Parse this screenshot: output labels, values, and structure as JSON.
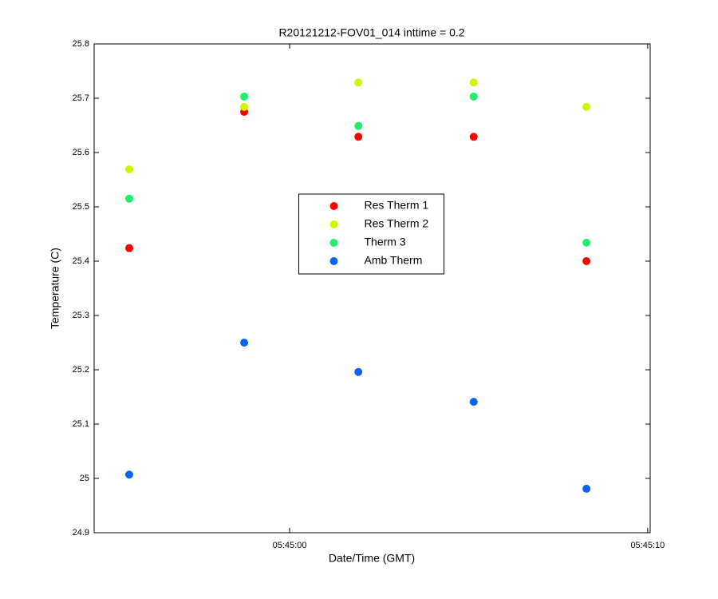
{
  "chart_data": {
    "type": "scatter",
    "title": "R20121212-FOV01_014 inttime = 0.2",
    "x_label": "Date/Time (GMT)",
    "y_label": "Temperature (C)",
    "x": [
      20695.52,
      20698.73,
      20701.92,
      20705.14,
      20708.29
    ],
    "series": [
      {
        "name": "Res Therm 1",
        "color": "#ff0000",
        "values": [
          25.424,
          25.675,
          25.629,
          25.629,
          25.4
        ]
      },
      {
        "name": "Res Therm 2",
        "color": "#d2f500",
        "values": [
          25.569,
          25.684,
          25.729,
          25.729,
          25.684
        ]
      },
      {
        "name": "Therm 3",
        "color": "#1ef06a",
        "values": [
          25.515,
          25.703,
          25.649,
          25.703,
          25.434
        ]
      },
      {
        "name": "Amb Therm",
        "color": "#0a64f0",
        "values": [
          25.007,
          25.25,
          25.196,
          25.141,
          24.981
        ]
      }
    ],
    "xlim": [
      20694.54,
      20710.07
    ],
    "xticks": [
      {
        "value": 20700,
        "label": "05:45:00"
      },
      {
        "value": 20710,
        "label": "05:45:10"
      }
    ],
    "ylim": [
      24.9,
      25.8
    ],
    "yticks": [
      24.9,
      25,
      25.1,
      25.2,
      25.3,
      25.4,
      25.5,
      25.6,
      25.7,
      25.8
    ],
    "grid": false,
    "legend": "center"
  }
}
